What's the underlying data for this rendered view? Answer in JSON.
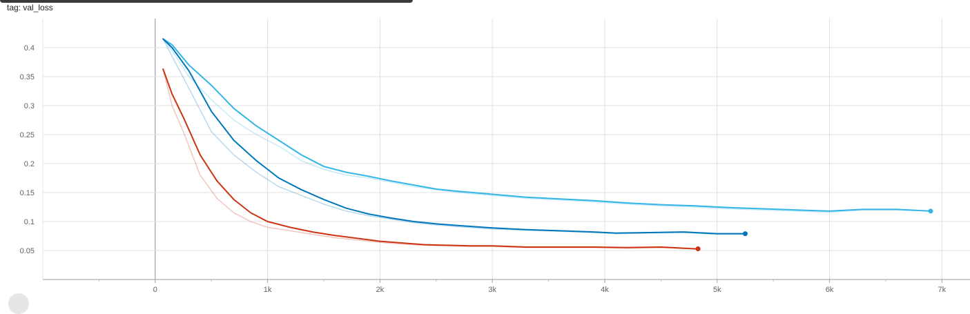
{
  "chart_data": {
    "type": "line",
    "title": "tag: val_loss",
    "xlim": [
      -1000,
      7250
    ],
    "ylim": [
      0,
      0.45
    ],
    "x_ticks": [
      0,
      1000,
      2000,
      3000,
      4000,
      5000,
      6000,
      7000
    ],
    "x_tick_labels": [
      "0",
      "1k",
      "2k",
      "3k",
      "4k",
      "5k",
      "6k",
      "7k"
    ],
    "y_ticks": [
      0.05,
      0.1,
      0.15,
      0.2,
      0.25,
      0.3,
      0.35,
      0.4
    ],
    "y_tick_labels": [
      "0.05",
      "0.1",
      "0.15",
      "0.2",
      "0.25",
      "0.3",
      "0.35",
      "0.4"
    ],
    "grid": true,
    "series": [
      {
        "color": "#33b5e5",
        "x": [
          70,
          150,
          300,
          500,
          700,
          900,
          1100,
          1300,
          1500,
          1700,
          1900,
          2100,
          2300,
          2500,
          2700,
          3000,
          3300,
          3600,
          3900,
          4200,
          4500,
          4800,
          5100,
          5400,
          5700,
          6000,
          6300,
          6600,
          6900
        ],
        "y": [
          0.415,
          0.405,
          0.37,
          0.335,
          0.295,
          0.265,
          0.24,
          0.215,
          0.195,
          0.185,
          0.178,
          0.17,
          0.163,
          0.156,
          0.152,
          0.147,
          0.142,
          0.139,
          0.136,
          0.132,
          0.129,
          0.127,
          0.124,
          0.122,
          0.12,
          0.118,
          0.121,
          0.121,
          0.118
        ],
        "raw_y": [
          0.415,
          0.395,
          0.35,
          0.31,
          0.275,
          0.25,
          0.23,
          0.205,
          0.19,
          0.18,
          0.175,
          0.168,
          0.16,
          0.155,
          0.15,
          0.145,
          0.14,
          0.137,
          0.134,
          0.13,
          0.127,
          0.125,
          0.122,
          0.12,
          0.118,
          0.116,
          0.12,
          0.12,
          0.118
        ]
      },
      {
        "color": "#0077bb",
        "x": [
          70,
          150,
          300,
          500,
          700,
          900,
          1100,
          1300,
          1500,
          1700,
          1900,
          2100,
          2300,
          2500,
          2700,
          3000,
          3300,
          3600,
          3900,
          4100,
          4400,
          4700,
          5000,
          5250
        ],
        "y": [
          0.415,
          0.4,
          0.36,
          0.29,
          0.24,
          0.205,
          0.175,
          0.155,
          0.138,
          0.123,
          0.113,
          0.106,
          0.1,
          0.096,
          0.093,
          0.089,
          0.086,
          0.084,
          0.082,
          0.08,
          0.081,
          0.082,
          0.079,
          0.079
        ],
        "raw_y": [
          0.415,
          0.385,
          0.33,
          0.255,
          0.215,
          0.185,
          0.16,
          0.145,
          0.13,
          0.118,
          0.11,
          0.104,
          0.098,
          0.094,
          0.091,
          0.087,
          0.085,
          0.083,
          0.081,
          0.079,
          0.08,
          0.081,
          0.078,
          0.078
        ]
      },
      {
        "color": "#cc3311",
        "x": [
          70,
          150,
          250,
          400,
          550,
          700,
          850,
          1000,
          1200,
          1400,
          1600,
          1800,
          2000,
          2200,
          2400,
          2600,
          2800,
          3000,
          3300,
          3600,
          3900,
          4200,
          4500,
          4800,
          4830
        ],
        "y": [
          0.363,
          0.32,
          0.28,
          0.215,
          0.17,
          0.138,
          0.115,
          0.1,
          0.09,
          0.082,
          0.076,
          0.071,
          0.066,
          0.063,
          0.06,
          0.059,
          0.058,
          0.058,
          0.056,
          0.056,
          0.056,
          0.055,
          0.056,
          0.053,
          0.053
        ],
        "raw_y": [
          0.363,
          0.3,
          0.255,
          0.18,
          0.14,
          0.115,
          0.1,
          0.09,
          0.084,
          0.078,
          0.072,
          0.068,
          0.064,
          0.061,
          0.059,
          0.058,
          0.057,
          0.057,
          0.055,
          0.055,
          0.055,
          0.054,
          0.055,
          0.053,
          0.053
        ]
      }
    ]
  }
}
